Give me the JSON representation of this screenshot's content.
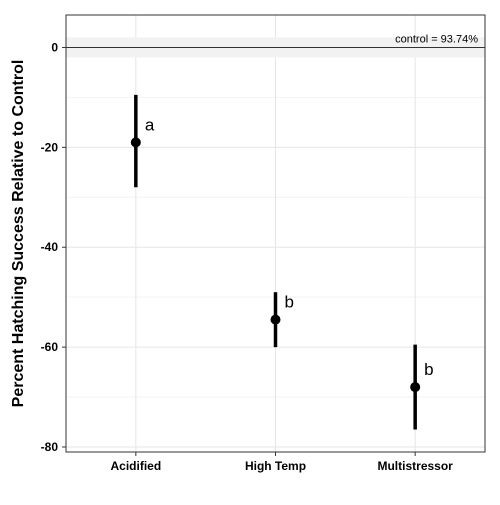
{
  "chart_data": {
    "type": "scatter",
    "title": "",
    "xlabel": "",
    "ylabel": "Percent Hatching Success Relative to Control",
    "categories": [
      "Acidified",
      "High Temp",
      "Multistressor"
    ],
    "points": [
      {
        "category": "Acidified",
        "mean": -19,
        "lower": -28,
        "upper": -9.5,
        "group_label": "a"
      },
      {
        "category": "High Temp",
        "mean": -54.5,
        "lower": -60,
        "upper": -49,
        "group_label": "b"
      },
      {
        "category": "Multistressor",
        "mean": -68,
        "lower": -76.5,
        "upper": -59.5,
        "group_label": "b"
      }
    ],
    "reference_line": {
      "value": 0,
      "label": "control = 93.74%",
      "band": [
        -2,
        2
      ]
    },
    "ylim": [
      -81,
      6.5
    ],
    "y_ticks": [
      0,
      -20,
      -40,
      -60,
      -80
    ],
    "y_tick_labels": [
      "0",
      "-20",
      "-40",
      "-60",
      "-80"
    ],
    "grid": true,
    "legend": "none",
    "colors": {
      "point": "#000000",
      "grid": "#e6e6e6",
      "band": "#f2f2f2",
      "reference_line": "#333333",
      "panel_border": "#333333"
    }
  }
}
